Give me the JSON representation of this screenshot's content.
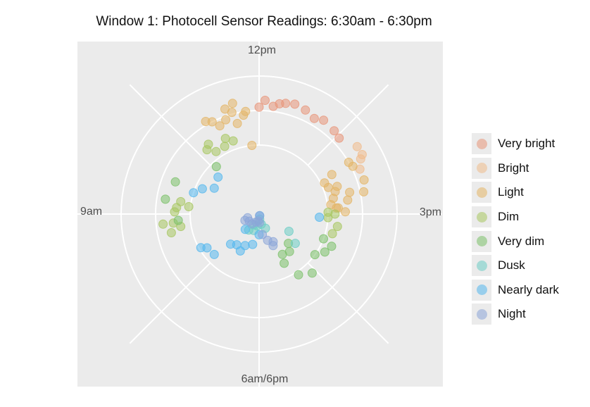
{
  "chart_data": {
    "type": "scatter",
    "coord": "polar",
    "title": "Window 1: Photocell Sensor Readings: 6:30am - 6:30pm",
    "theta_labels": [
      "12pm",
      "3pm",
      "6am/6pm",
      "9am"
    ],
    "r_range": [
      0,
      4
    ],
    "grid": true,
    "legend_position": "right",
    "legend_title": "",
    "series": [
      {
        "name": "Very bright",
        "color": "#E8967A",
        "points": [
          [
            12.0,
            3.1
          ],
          [
            12.1,
            3.3
          ],
          [
            12.25,
            3.15
          ],
          [
            12.35,
            3.25
          ],
          [
            12.45,
            3.3
          ],
          [
            12.6,
            3.35
          ],
          [
            12.8,
            3.3
          ],
          [
            13.0,
            3.2
          ],
          [
            13.15,
            3.3
          ],
          [
            13.4,
            3.25
          ],
          [
            13.55,
            3.2
          ]
        ]
      },
      {
        "name": "Bright",
        "color": "#F0BC8C",
        "points": [
          [
            13.85,
            3.45
          ],
          [
            14.0,
            3.45
          ],
          [
            14.05,
            3.35
          ],
          [
            14.2,
            3.2
          ]
        ]
      },
      {
        "name": "Light",
        "color": "#E4B566",
        "points": [
          [
            11.7,
            2.9
          ],
          [
            11.75,
            3.0
          ],
          [
            11.5,
            3.05
          ],
          [
            11.4,
            3.2
          ],
          [
            11.55,
            3.3
          ],
          [
            11.0,
            3.1
          ],
          [
            11.2,
            2.8
          ],
          [
            11.35,
            2.9
          ],
          [
            11.1,
            3.0
          ],
          [
            11.55,
            2.7
          ],
          [
            11.8,
            2.0
          ],
          [
            14.0,
            3.0
          ],
          [
            14.1,
            3.05
          ],
          [
            14.4,
            3.2
          ],
          [
            14.6,
            3.1
          ],
          [
            14.55,
            2.7
          ],
          [
            14.7,
            2.6
          ],
          [
            14.35,
            2.4
          ],
          [
            14.05,
            2.4
          ],
          [
            14.15,
            2.1
          ],
          [
            14.3,
            2.15
          ],
          [
            14.45,
            2.3
          ],
          [
            14.6,
            2.2
          ],
          [
            14.75,
            2.1
          ],
          [
            14.85,
            2.3
          ],
          [
            14.95,
            2.5
          ],
          [
            14.85,
            2.25
          ]
        ]
      },
      {
        "name": "Dim",
        "color": "#A8C761",
        "points": [
          [
            10.8,
            2.5
          ],
          [
            10.85,
            2.2
          ],
          [
            11.2,
            2.4
          ],
          [
            11.1,
            2.2
          ],
          [
            11.35,
            2.25
          ],
          [
            10.7,
            2.4
          ],
          [
            14.95,
            2.0
          ],
          [
            15.0,
            2.2
          ],
          [
            15.1,
            2.0
          ],
          [
            15.3,
            2.3
          ],
          [
            15.5,
            2.2
          ],
          [
            9.3,
            2.3
          ],
          [
            9.2,
            2.05
          ],
          [
            9.15,
            2.4
          ],
          [
            9.05,
            2.45
          ],
          [
            8.8,
            2.5
          ],
          [
            8.8,
            2.8
          ],
          [
            8.6,
            2.6
          ],
          [
            8.7,
            2.3
          ]
        ]
      },
      {
        "name": "Very dim",
        "color": "#7CC16A",
        "points": [
          [
            10.6,
            1.85
          ],
          [
            9.7,
            2.6
          ],
          [
            9.3,
            2.75
          ],
          [
            8.85,
            2.35
          ],
          [
            15.7,
            2.0
          ],
          [
            15.8,
            2.3
          ],
          [
            16.0,
            2.2
          ],
          [
            16.2,
            2.0
          ],
          [
            16.6,
            2.3
          ],
          [
            16.9,
            2.1
          ],
          [
            17.1,
            1.6
          ],
          [
            17.0,
            1.35
          ],
          [
            16.7,
            1.4
          ],
          [
            16.5,
            1.2
          ]
        ]
      },
      {
        "name": "Dusk",
        "color": "#6DCDC5",
        "points": [
          [
            16.3,
            1.35
          ],
          [
            16.0,
            1.0
          ],
          [
            17.2,
            0.45
          ],
          [
            17.6,
            0.3
          ],
          [
            17.8,
            0.15
          ],
          [
            18.3,
            0.35
          ],
          [
            18.6,
            0.5
          ],
          [
            18.9,
            0.35
          ],
          [
            19.1,
            0.55
          ]
        ]
      },
      {
        "name": "Nearly dark",
        "color": "#55B8EE",
        "points": [
          [
            15.1,
            1.75
          ],
          [
            10.0,
            1.5
          ],
          [
            10.4,
            1.6
          ],
          [
            9.8,
            1.8
          ],
          [
            9.6,
            2.0
          ],
          [
            8.0,
            1.95
          ],
          [
            7.9,
            1.8
          ],
          [
            7.6,
            1.75
          ],
          [
            7.2,
            1.1
          ],
          [
            7.45,
            1.2
          ],
          [
            18.0,
            0.6
          ],
          [
            18.4,
            0.9
          ],
          [
            18.8,
            1.0
          ],
          [
            18.9,
            1.2
          ],
          [
            17.3,
            0.05
          ],
          [
            19.4,
            0.6
          ]
        ]
      },
      {
        "name": "Night",
        "color": "#8CA6D8",
        "points": [
          [
            17.5,
            0.05
          ],
          [
            17.9,
            0.25
          ],
          [
            18.2,
            0.2
          ],
          [
            18.7,
            0.25
          ],
          [
            19.2,
            0.35
          ],
          [
            17.7,
            0.6
          ],
          [
            17.2,
            1.0
          ],
          [
            17.1,
            0.9
          ],
          [
            17.4,
            0.8
          ],
          [
            19.8,
            0.35
          ],
          [
            20.2,
            0.45
          ],
          [
            20.4,
            0.35
          ]
        ]
      }
    ]
  }
}
